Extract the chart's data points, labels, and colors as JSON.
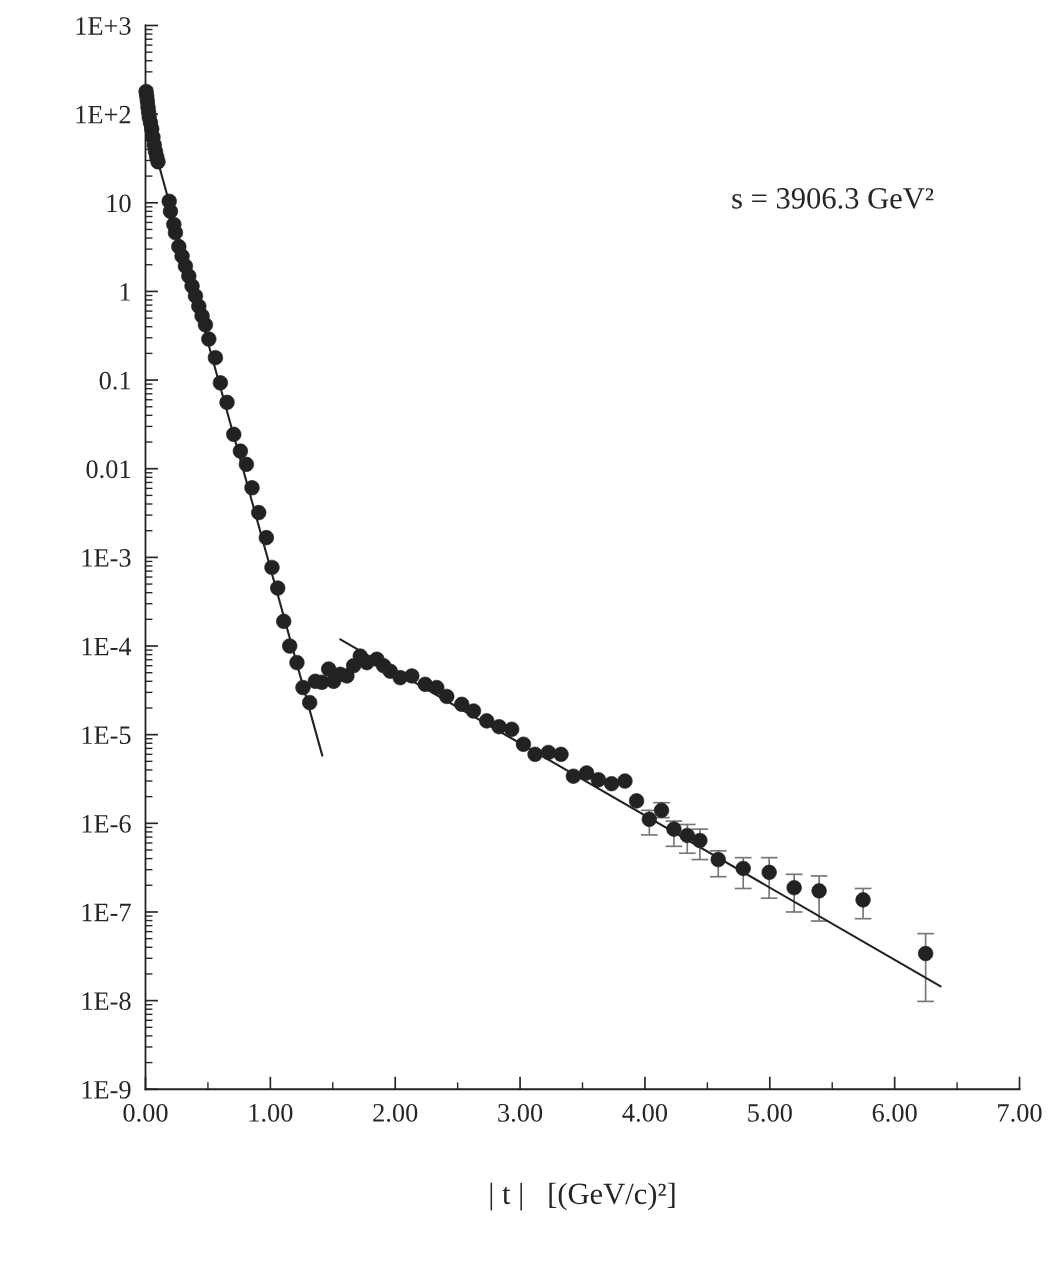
{
  "chart_data": {
    "type": "scatter",
    "xlabel": "| t |   [(GeV/c)²]",
    "annotations": [
      "s = 3906.3 GeV²"
    ],
    "log": "y",
    "grid": false,
    "legend": false,
    "xlim": [
      0,
      7
    ],
    "xticks": [
      {
        "value": 0,
        "label": "0.00"
      },
      {
        "value": 1,
        "label": "1.00"
      },
      {
        "value": 2,
        "label": "2.00"
      },
      {
        "value": 3,
        "label": "3.00"
      },
      {
        "value": 4,
        "label": "4.00"
      },
      {
        "value": 5,
        "label": "5.00"
      },
      {
        "value": 6,
        "label": "6.00"
      },
      {
        "value": 7,
        "label": "7.00"
      }
    ],
    "ylim": [
      1e-09,
      1000
    ],
    "yticks": [
      {
        "value": 1000,
        "label": "1E+3"
      },
      {
        "value": 100,
        "label": "1E+2"
      },
      10,
      1,
      0.1,
      0.01,
      {
        "value": 0.001,
        "label": "1E-3"
      },
      {
        "value": 0.0001,
        "label": "1E-4"
      },
      {
        "value": 1e-05,
        "label": "1E-5"
      },
      {
        "value": 1e-06,
        "label": "1E-6"
      },
      {
        "value": 1e-07,
        "label": "1E-7"
      },
      {
        "value": 1e-08,
        "label": "1E-8"
      },
      {
        "value": 1e-09,
        "label": "1E-9"
      }
    ],
    "series": [
      {
        "color": "#222222",
        "marker": "circle",
        "x": [
          0.005,
          0.01,
          0.015,
          0.02,
          0.025,
          0.03,
          0.04,
          0.05,
          0.06,
          0.07,
          0.08,
          0.09,
          0.1,
          0.19,
          0.2,
          0.227,
          0.24,
          0.267,
          0.293,
          0.32,
          0.347,
          0.373,
          0.4,
          0.427,
          0.453,
          0.48,
          0.507,
          0.56,
          0.6,
          0.653,
          0.707,
          0.76,
          0.808,
          0.853,
          0.907,
          0.968,
          1.013,
          1.059,
          1.107,
          1.155,
          1.213,
          1.261,
          1.315,
          1.36,
          1.413,
          1.467,
          1.507,
          1.56,
          1.613,
          1.667,
          1.72,
          1.773,
          1.853,
          1.907,
          1.96,
          2.04,
          2.133,
          2.24,
          2.333,
          2.413,
          2.533,
          2.627,
          2.733,
          2.832,
          2.933,
          3.027,
          3.12,
          3.227,
          3.328,
          3.427,
          3.533,
          3.627,
          3.733,
          3.84,
          3.933,
          4.035,
          4.133,
          4.232,
          4.339,
          4.44,
          4.587,
          4.787,
          4.995,
          5.195,
          5.395,
          5.747,
          6.248
        ],
        "values": [
          180,
          160,
          140,
          120,
          105,
          92,
          80,
          68,
          55,
          45,
          38,
          33,
          29,
          10.4,
          8.0,
          5.7,
          4.6,
          3.2,
          2.5,
          1.93,
          1.49,
          1.15,
          0.89,
          0.68,
          0.53,
          0.42,
          0.29,
          0.179,
          0.093,
          0.056,
          0.0244,
          0.0158,
          0.0112,
          0.0061,
          0.0032,
          0.00167,
          0.00077,
          0.00045,
          0.00019,
          0.0001,
          6.5e-05,
          3.4e-05,
          2.3e-05,
          4e-05,
          3.9e-05,
          5.5e-05,
          4e-05,
          4.8e-05,
          4.6e-05,
          6e-05,
          7.7e-05,
          6.5e-05,
          7.1e-05,
          6e-05,
          5.2e-05,
          4.4e-05,
          4.6e-05,
          3.7e-05,
          3.4e-05,
          2.7e-05,
          2.2e-05,
          1.85e-05,
          1.43e-05,
          1.23e-05,
          1.15e-05,
          7.8e-06,
          6e-06,
          6.3e-06,
          6e-06,
          3.4e-06,
          3.7e-06,
          3.1e-06,
          2.8e-06,
          3e-06,
          1.79e-06,
          1.11e-06,
          1.4e-06,
          8.6e-07,
          7.3e-07,
          6.4e-07,
          3.9e-07,
          3.1e-07,
          2.8e-07,
          1.88e-07,
          1.73e-07,
          1.37e-07,
          3.4e-08
        ],
        "errors": [
          null,
          null,
          null,
          null,
          null,
          null,
          null,
          null,
          null,
          null,
          null,
          null,
          null,
          null,
          null,
          null,
          null,
          null,
          null,
          null,
          null,
          null,
          null,
          null,
          null,
          null,
          null,
          null,
          null,
          null,
          null,
          null,
          null,
          null,
          null,
          null,
          null,
          null,
          null,
          null,
          null,
          null,
          null,
          null,
          null,
          null,
          null,
          null,
          null,
          null,
          null,
          null,
          null,
          null,
          null,
          null,
          null,
          null,
          null,
          null,
          null,
          null,
          null,
          null,
          null,
          null,
          null,
          null,
          null,
          null,
          null,
          null,
          null,
          null,
          null,
          [
            7.4e-07,
            1.4e-06
          ],
          [
            1.16e-06,
            1.71e-06
          ],
          [
            5.5e-07,
            1.06e-06
          ],
          [
            4.6e-07,
            9.7e-07
          ],
          [
            3.9e-07,
            8.6e-07
          ],
          [
            2.5e-07,
            4.9e-07
          ],
          [
            1.84e-07,
            4.1e-07
          ],
          [
            1.43e-07,
            4.1e-07
          ],
          [
            1e-07,
            2.66e-07
          ],
          [
            7.9e-08,
            2.55e-07
          ],
          [
            8.4e-08,
            1.84e-07
          ],
          [
            9.8e-09,
            5.7e-08
          ]
        ]
      },
      {
        "type": "line",
        "color": "#222222",
        "line_style": "solid",
        "marker": "none",
        "x": [
          0,
          0.1,
          1.416
        ],
        "values": [
          200,
          29,
          5.8e-06
        ]
      },
      {
        "type": "line",
        "color": "#222222",
        "line_style": "solid",
        "marker": "none",
        "x": [
          1.56,
          6.368
        ],
        "values": [
          0.000119,
          1.45e-08
        ]
      }
    ]
  }
}
